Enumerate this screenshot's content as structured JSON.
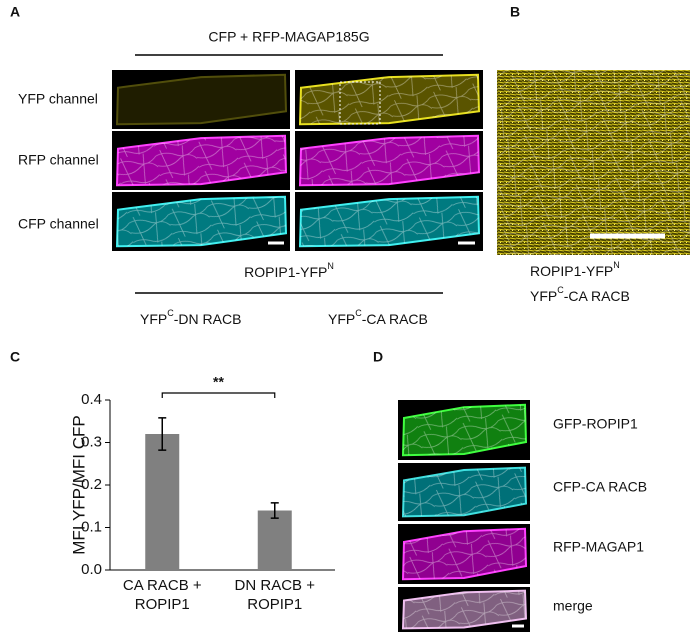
{
  "panel_a": {
    "letter": "A",
    "condition": "CFP + RFP-MAGAP185G",
    "rows": [
      "YFP channel",
      "RFP channel",
      "CFP channel"
    ],
    "construct": {
      "base": "ROPIP1-YFP",
      "sup": "N"
    },
    "columns": [
      {
        "base": "YFP",
        "sup": "C",
        "rest": "-DN RACB"
      },
      {
        "base": "YFP",
        "sup": "C",
        "rest": "-CA RACB"
      }
    ]
  },
  "panel_b": {
    "letter": "B",
    "line1": {
      "base": "ROPIP1-YFP",
      "sup": "N"
    },
    "line2": {
      "base": "YFP",
      "sup": "C",
      "rest": "-CA RACB"
    }
  },
  "chart_data": {
    "type": "bar",
    "letter": "C",
    "y_label": "MFI YFP/MFI CFP",
    "categories": [
      "CA RACB + ROPIP1",
      "DN RACB + ROPIP1"
    ],
    "values": [
      0.32,
      0.14
    ],
    "errors": [
      0.038,
      0.018
    ],
    "color": "#808080",
    "ylim": [
      0,
      0.4
    ],
    "yticks": [
      {
        "value": 0,
        "label": "0.0"
      },
      0.1,
      0.2,
      0.3,
      0.4
    ],
    "significance": "**"
  },
  "panel_d": {
    "letter": "D",
    "labels": [
      "GFP-ROPIP1",
      "CFP-CA RACB",
      "RFP-MAGAP1",
      "merge"
    ]
  }
}
